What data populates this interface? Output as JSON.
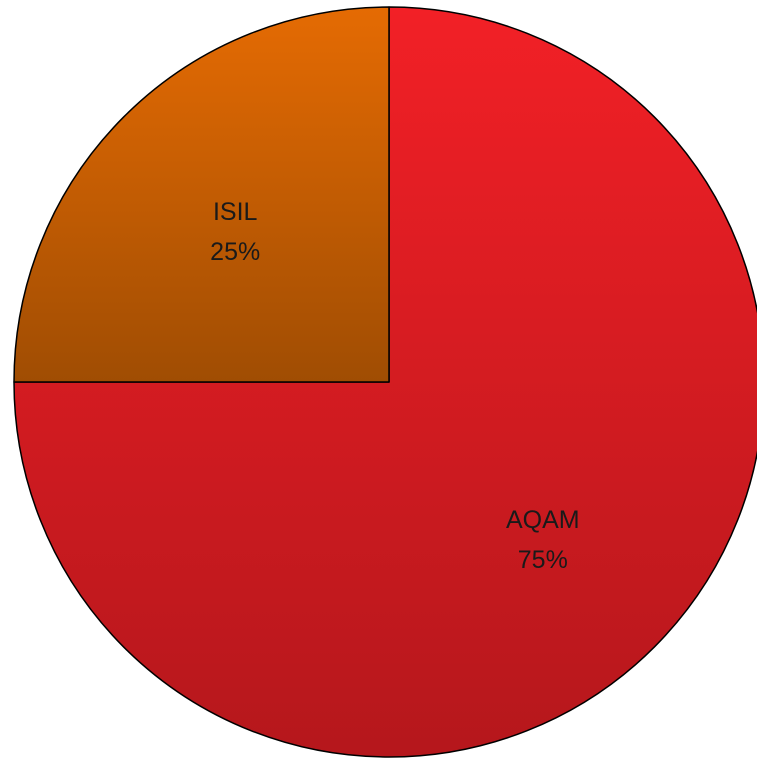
{
  "chart_data": {
    "type": "pie",
    "title": "",
    "start_angle_deg": 0,
    "direction": "clockwise",
    "slices": [
      {
        "label": "AQAM",
        "value": 75,
        "value_label": "75%",
        "color_top": "#f22026",
        "color_bottom": "#b5171c"
      },
      {
        "label": "ISIL",
        "value": 25,
        "value_label": "25%",
        "color_top": "#e56b03",
        "color_bottom": "#a04d03"
      }
    ]
  }
}
